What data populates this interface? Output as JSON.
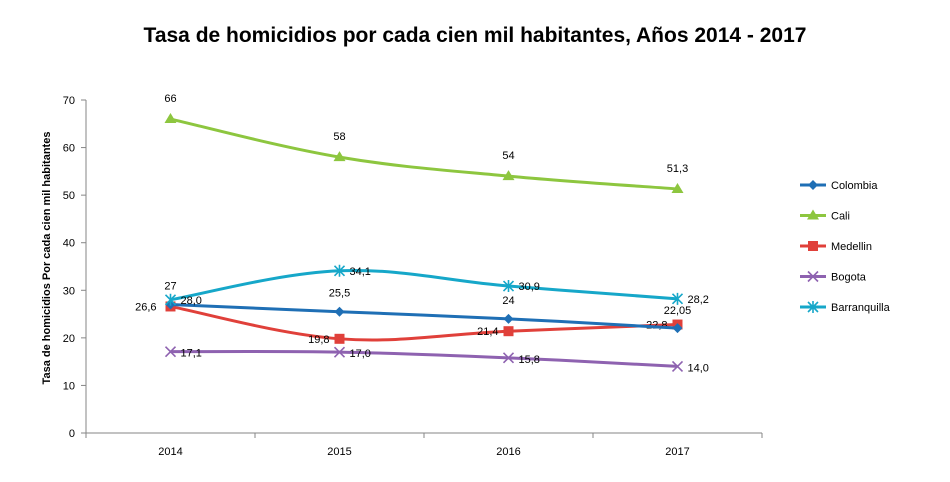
{
  "chart_data": {
    "type": "line",
    "title": "Tasa de homicidios por cada cien mil habitantes, Años 2014 - 2017",
    "xlabel": "",
    "ylabel": "Tasa de homicidios Por cada cien mil habitantes",
    "categories": [
      "2014",
      "2015",
      "2016",
      "2017"
    ],
    "ylim": [
      0,
      70
    ],
    "yticks": [
      "0",
      "10",
      "20",
      "30",
      "40",
      "50",
      "60",
      "70"
    ],
    "legend_position": "right",
    "series": [
      {
        "name": "Colombia",
        "color": "#1F6FB5",
        "marker": "diamond",
        "values": [
          27,
          25.5,
          24,
          22.05
        ],
        "labels": [
          "27",
          "25,5",
          "24",
          "22,05"
        ]
      },
      {
        "name": "Cali",
        "color": "#8DC63F",
        "marker": "triangle",
        "values": [
          66,
          58,
          54,
          51.3
        ],
        "labels": [
          "66",
          "58",
          "54",
          "51,3"
        ]
      },
      {
        "name": "Medellin",
        "color": "#E0403A",
        "marker": "square",
        "values": [
          26.6,
          19.8,
          21.4,
          22.8
        ],
        "labels": [
          "26,6",
          "19,8",
          "21,4",
          "22,8"
        ]
      },
      {
        "name": "Bogota",
        "color": "#8E62B0",
        "marker": "x",
        "values": [
          17.1,
          17.0,
          15.8,
          14.0
        ],
        "labels": [
          "17,1",
          "17,0",
          "15,8",
          "14,0"
        ]
      },
      {
        "name": "Barranquilla",
        "color": "#16A7C9",
        "marker": "star",
        "values": [
          28.0,
          34.1,
          30.9,
          28.2
        ],
        "labels": [
          "28,0",
          "34,1",
          "30,9",
          "28,2"
        ]
      }
    ]
  }
}
